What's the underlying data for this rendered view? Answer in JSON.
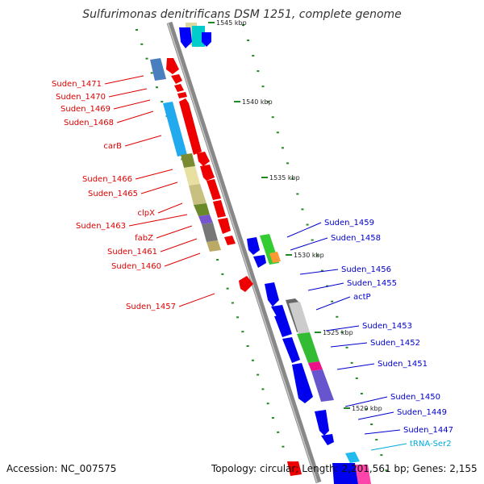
{
  "header": {
    "title": "Sulfurimonas denitrificans DSM 1251, complete genome"
  },
  "footer": {
    "accession": "Accession: NC_007575",
    "summary": "Topology: circular; Length: 2,201,561 bp; Genes: 2,155"
  },
  "ruler": {
    "ticks": [
      {
        "label": "1545 kbp"
      },
      {
        "label": "1540 kbp"
      },
      {
        "label": "1535 kbp"
      },
      {
        "label": "1530 kbp"
      },
      {
        "label": "1525 kbp"
      },
      {
        "label": "1520 kbp"
      }
    ]
  },
  "colors": {
    "backbone": "#8a8a8a",
    "left_label": "#dd0000",
    "right_label": "#0000cc",
    "trna_label": "#00aadd",
    "tick": "#228822"
  },
  "genes_left": [
    {
      "label": "Suden_1471"
    },
    {
      "label": "Suden_1470"
    },
    {
      "label": "Suden_1469"
    },
    {
      "label": "Suden_1468"
    },
    {
      "label": "carB"
    },
    {
      "label": "Suden_1466"
    },
    {
      "label": "Suden_1465"
    },
    {
      "label": "clpX"
    },
    {
      "label": "Suden_1463"
    },
    {
      "label": "fabZ"
    },
    {
      "label": "Suden_1461"
    },
    {
      "label": "Suden_1460"
    },
    {
      "label": "Suden_1457"
    }
  ],
  "genes_right": [
    {
      "label": "Suden_1459"
    },
    {
      "label": "Suden_1458"
    },
    {
      "label": "Suden_1456"
    },
    {
      "label": "Suden_1455"
    },
    {
      "label": "actP"
    },
    {
      "label": "Suden_1453"
    },
    {
      "label": "Suden_1452"
    },
    {
      "label": "Suden_1451"
    },
    {
      "label": "Suden_1450"
    },
    {
      "label": "Suden_1449"
    },
    {
      "label": "Suden_1447"
    },
    {
      "label": "tRNA-Ser2"
    }
  ]
}
